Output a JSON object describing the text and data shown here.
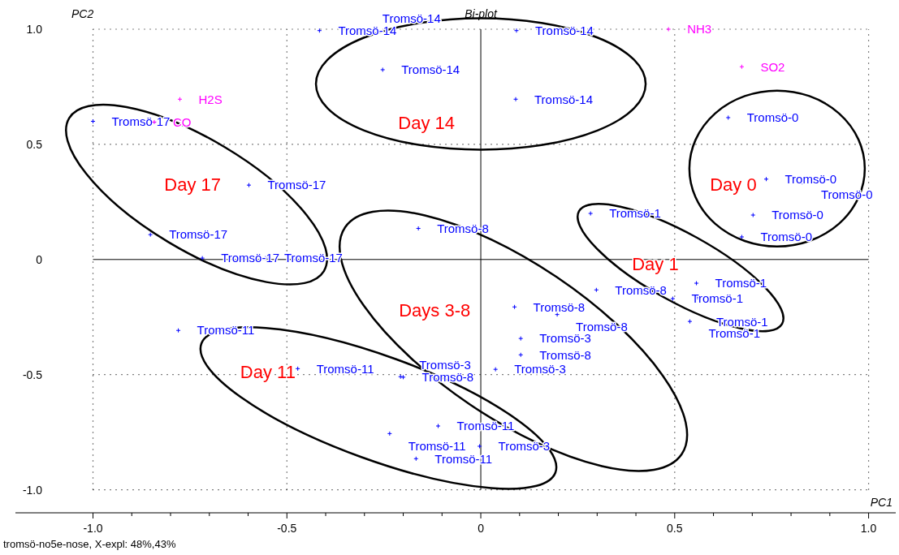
{
  "chart_data": {
    "type": "scatter",
    "title": "Bi-plot",
    "xlabel": "PC1",
    "ylabel": "PC2",
    "xlim": [
      -1.2,
      1.07
    ],
    "ylim": [
      -1.1,
      1.0
    ],
    "xticks": [
      {
        "value": -1.0,
        "label": "-1.0"
      },
      {
        "value": -0.9,
        "label": null
      },
      {
        "value": -0.8,
        "label": null
      },
      {
        "value": -0.7,
        "label": null
      },
      {
        "value": -0.6,
        "label": null
      },
      {
        "value": -0.5,
        "label": "-0.5"
      },
      {
        "value": -0.4,
        "label": null
      },
      {
        "value": -0.3,
        "label": null
      },
      {
        "value": -0.2,
        "label": null
      },
      {
        "value": -0.1,
        "label": null
      },
      {
        "value": 0,
        "label": "0"
      },
      {
        "value": 0.1,
        "label": null
      },
      {
        "value": 0.2,
        "label": null
      },
      {
        "value": 0.3,
        "label": null
      },
      {
        "value": 0.4,
        "label": null
      },
      {
        "value": 0.5,
        "label": "0.5"
      },
      {
        "value": 0.6,
        "label": null
      },
      {
        "value": 0.7,
        "label": null
      },
      {
        "value": 0.8,
        "label": null
      },
      {
        "value": 0.9,
        "label": null
      },
      {
        "value": 1.0,
        "label": "1.0"
      }
    ],
    "yticks": [
      {
        "value": -1.0,
        "label": "-1.0"
      },
      {
        "value": -0.5,
        "label": "-0.5"
      },
      {
        "value": 0,
        "label": "0"
      },
      {
        "value": 0.5,
        "label": "0.5"
      },
      {
        "value": 1.0,
        "label": "1.0"
      }
    ],
    "grid": true,
    "marker": "cross",
    "series": [
      {
        "color": "#0000ff",
        "x": [
          -1.0,
          -0.598,
          -0.852,
          -0.718,
          -0.555,
          -0.416,
          -0.302,
          -0.253,
          0.092,
          0.09,
          0.638,
          0.736,
          0.829,
          0.702,
          0.673,
          0.283,
          0.556,
          0.495,
          0.559,
          0.539,
          -0.161,
          0.298,
          0.087,
          0.197,
          0.103,
          -0.2,
          0.103,
          0.038,
          -0.207,
          -0.003,
          -0.78,
          -0.472,
          -0.11,
          -0.235,
          -0.167
        ],
        "values": [
          0.6,
          0.323,
          0.108,
          0.006,
          0.006,
          0.994,
          0.994,
          0.824,
          0.994,
          0.696,
          0.616,
          0.349,
          0.335,
          0.193,
          0.098,
          0.2,
          -0.103,
          -0.17,
          -0.165,
          -0.269,
          0.135,
          -0.132,
          -0.206,
          -0.239,
          -0.414,
          -0.511,
          -0.343,
          -0.477,
          -0.509,
          -0.811,
          -0.308,
          -0.474,
          -0.723,
          -0.756,
          -0.865
        ],
        "value_labels": [
          "Tromsö-17",
          "Tromsö-17",
          "Tromsö-17",
          "Tromsö-17",
          "Tromsö-17",
          "Tromsö-14",
          "Tromsö-14",
          "Tromsö-14",
          "Tromsö-14",
          "Tromsö-14",
          "Tromsö-0",
          "Tromsö-0",
          "Tromsö-0",
          "Tromsö-0",
          "Tromsö-0",
          "Tromsö-1",
          "Tromsö-1",
          "Tromsö-1",
          "Tromsö-1",
          "Tromsö-1",
          "Tromsö-8",
          "Tromsö-8",
          "Tromsö-8",
          "Tromsö-8",
          "Tromsö-8",
          "Tromsö-8",
          "Tromsö-3",
          "Tromsö-3",
          "Tromsö-3",
          "Tromsö-3",
          "Tromsö-11",
          "Tromsö-11",
          "Tromsö-11",
          "Tromsö-11",
          "Tromsö-11"
        ]
      },
      {
        "color": "#ff00ff",
        "x": [
          -0.776,
          -0.842,
          0.484,
          0.673
        ],
        "values": [
          0.696,
          0.597,
          1.0,
          0.837
        ],
        "value_labels": [
          "H2S",
          "CO",
          "NH3",
          "SO2"
        ]
      }
    ],
    "annotations": [
      "Day 17",
      "Day 14",
      "Day 0",
      "Day 1",
      "Days 3-8",
      "Day 11",
      "tromsö-no5e-nose, X-expl: 48%,43%"
    ]
  }
}
